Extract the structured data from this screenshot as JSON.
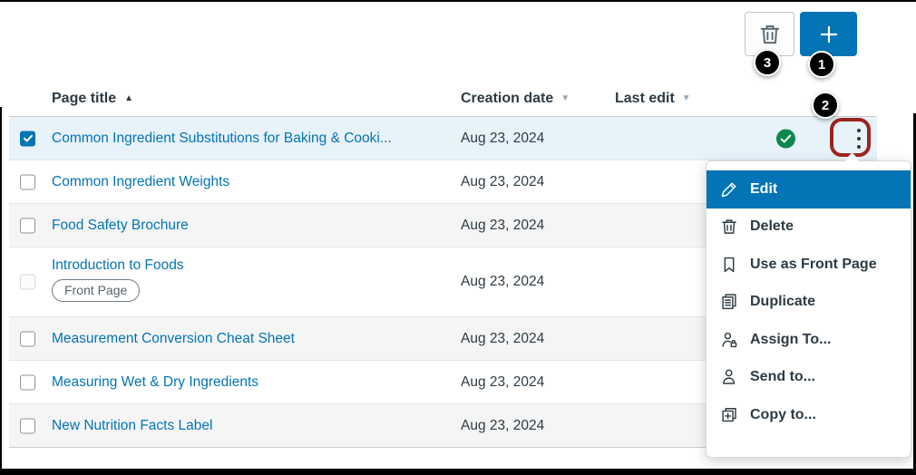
{
  "colors": {
    "brand_blue": "#0374B5",
    "published_green": "#0B874B",
    "annotation_red": "#9B241F",
    "selected_row": "#E8F2F9",
    "stripe_gray": "#F5F5F5"
  },
  "toolbar": {
    "delete_button": {
      "icon": "trash-icon"
    },
    "add_button": {
      "icon": "plus-icon"
    }
  },
  "callouts": [
    {
      "label": "1"
    },
    {
      "label": "2"
    },
    {
      "label": "3"
    }
  ],
  "table": {
    "columns": [
      {
        "label": "Page title",
        "sort": "ascending",
        "sort_icon": "▲"
      },
      {
        "label": "Creation date",
        "sort": "none",
        "sort_icon": "▼"
      },
      {
        "label": "Last edit",
        "sort": "none",
        "sort_icon": "▼"
      }
    ],
    "rows": [
      {
        "title": "Common Ingredient Substitutions for Baking & Cooki...",
        "creation_date": "Aug 23, 2024",
        "last_edit": "",
        "selected": true,
        "checked": true,
        "published": true,
        "menu_trigger": true
      },
      {
        "title": "Common Ingredient Weights",
        "creation_date": "Aug 23, 2024",
        "last_edit": ""
      },
      {
        "title": "Food Safety Brochure",
        "creation_date": "Aug 23, 2024",
        "last_edit": ""
      },
      {
        "title": "Introduction to Foods",
        "creation_date": "Aug 23, 2024",
        "last_edit": "",
        "badge": "Front Page",
        "checkbox_disabled": true
      },
      {
        "title": "Measurement Conversion Cheat Sheet",
        "creation_date": "Aug 23, 2024",
        "last_edit": ""
      },
      {
        "title": "Measuring Wet & Dry Ingredients",
        "creation_date": "Aug 23, 2024",
        "last_edit": ""
      },
      {
        "title": "New Nutrition Facts Label",
        "creation_date": "Aug 23, 2024",
        "last_edit": ""
      }
    ]
  },
  "context_menu": {
    "items": [
      {
        "label": "Edit",
        "icon": "pencil-icon",
        "active": true
      },
      {
        "label": "Delete",
        "icon": "trash-icon",
        "active": false
      },
      {
        "label": "Use as Front Page",
        "icon": "bookmark-icon",
        "active": false
      },
      {
        "label": "Duplicate",
        "icon": "duplicate-icon",
        "active": false
      },
      {
        "label": "Assign To...",
        "icon": "assign-to-icon",
        "active": false
      },
      {
        "label": "Send to...",
        "icon": "send-to-icon",
        "active": false
      },
      {
        "label": "Copy to...",
        "icon": "copy-to-icon",
        "active": false
      }
    ]
  }
}
